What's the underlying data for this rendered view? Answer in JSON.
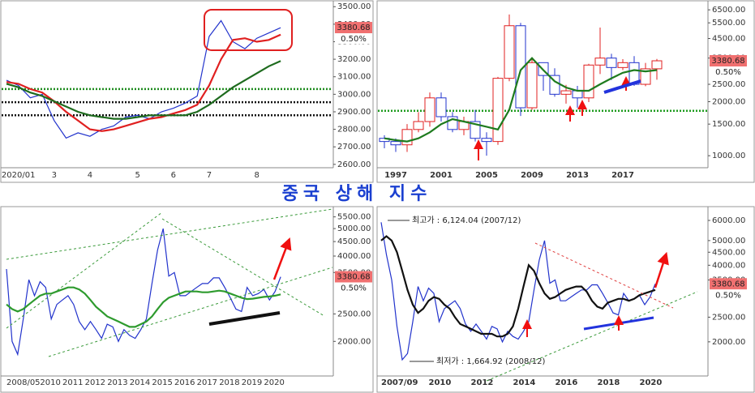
{
  "page_title": "중국 상해 지수",
  "chart_data": [
    {
      "type": "line",
      "log_scale": false,
      "ylim": [
        2590,
        3515
      ],
      "yticks": [
        {
          "value": 2600,
          "label": "2600.00"
        },
        {
          "value": 2700,
          "label": "2700.00"
        },
        {
          "value": 2800,
          "label": "2800.00"
        },
        {
          "value": 2900,
          "label": "2900.00"
        },
        {
          "value": 3000,
          "label": "3000.00"
        },
        {
          "value": 3100,
          "label": "3100.00"
        },
        {
          "value": 3200,
          "label": "3200.00"
        },
        {
          "value": 3300,
          "label": "3300.00"
        },
        {
          "value": 3400,
          "label": "3400.00"
        },
        {
          "value": 3500,
          "label": "3500.00"
        }
      ],
      "categories": [
        null,
        "2020/01",
        null,
        null,
        "3",
        null,
        null,
        "4",
        null,
        null,
        null,
        "5",
        null,
        null,
        "6",
        null,
        null,
        "7",
        null,
        null,
        null,
        "8",
        null,
        null
      ],
      "series": [
        {
          "color": "#2233cc",
          "values": [
            3080,
            3050,
            2980,
            3000,
            2850,
            2750,
            2780,
            2760,
            2800,
            2820,
            2870,
            2880,
            2860,
            2900,
            2920,
            2950,
            2990,
            3330,
            3420,
            3300,
            3260,
            3320,
            3350,
            3380
          ]
        },
        {
          "color": "#e02020",
          "values": [
            3070,
            3060,
            3030,
            3010,
            2960,
            2900,
            2850,
            2800,
            2790,
            2800,
            2820,
            2840,
            2860,
            2870,
            2890,
            2910,
            2940,
            3050,
            3200,
            3310,
            3320,
            3300,
            3310,
            3340
          ]
        },
        {
          "color": "#1e6b1e",
          "values": [
            3060,
            3040,
            3010,
            2990,
            2960,
            2930,
            2900,
            2880,
            2870,
            2860,
            2860,
            2870,
            2880,
            2880,
            2880,
            2880,
            2900,
            2940,
            2990,
            3040,
            3080,
            3120,
            3160,
            3190
          ]
        }
      ],
      "reference_lines": [
        {
          "value": 3030,
          "color": "#1e8b1e"
        },
        {
          "value": 2955,
          "color": "#111111"
        },
        {
          "value": 2880,
          "color": "#111111"
        }
      ],
      "price_tag": {
        "value": 3380.68,
        "label": "3380.68",
        "change": "0.50%"
      }
    },
    {
      "type": "candlestick",
      "log_scale": true,
      "ylim": [
        875,
        7000
      ],
      "yticks": [
        {
          "value": 1000,
          "label": "1000.00"
        },
        {
          "value": 1500,
          "label": "1500.00"
        },
        {
          "value": 2000,
          "label": "2000.00"
        },
        {
          "value": 2500,
          "label": "2500.00"
        },
        {
          "value": 3500,
          "label": "3500.00"
        },
        {
          "value": 4500,
          "label": "4500.00"
        },
        {
          "value": 5500,
          "label": "5500.00"
        },
        {
          "value": 6500,
          "label": "6500.00"
        }
      ],
      "categories": [
        null,
        "1997",
        null,
        null,
        null,
        "2001",
        null,
        null,
        null,
        "2005",
        null,
        null,
        null,
        "2009",
        null,
        null,
        null,
        "2013",
        null,
        null,
        null,
        "2017",
        null,
        null,
        null
      ],
      "open": [
        1250,
        1200,
        1150,
        1400,
        1550,
        2100,
        1650,
        1400,
        1550,
        1250,
        1200,
        2700,
        5300,
        1850,
        3300,
        2800,
        2200,
        2300,
        2100,
        3200,
        3500,
        3100,
        3300,
        2500,
        3050
      ],
      "close": [
        1200,
        1150,
        1400,
        1550,
        2100,
        1650,
        1400,
        1550,
        1250,
        1200,
        2700,
        5300,
        1850,
        3300,
        2800,
        2200,
        2300,
        2100,
        3200,
        3500,
        3100,
        3300,
        2500,
        3050,
        3380
      ],
      "high": [
        1300,
        1250,
        1500,
        1750,
        2250,
        2250,
        1750,
        1650,
        1800,
        1350,
        2750,
        6124,
        5500,
        3480,
        3300,
        3070,
        2480,
        2450,
        3250,
        5180,
        3700,
        3450,
        3590,
        3290,
        3460
      ],
      "low": [
        1100,
        1050,
        1050,
        1350,
        1450,
        1550,
        1350,
        1300,
        1200,
        1000,
        1150,
        2600,
        1664,
        1800,
        2300,
        2130,
        1950,
        1850,
        1990,
        2850,
        2640,
        3000,
        2450,
        2440,
        2650
      ],
      "up_color": "#e02020",
      "down_color": "#2233cc",
      "series": [
        {
          "color": "#1e7b1e",
          "values": [
            1250,
            1220,
            1200,
            1250,
            1350,
            1500,
            1600,
            1550,
            1500,
            1450,
            1400,
            1800,
            3000,
            3500,
            3000,
            2600,
            2400,
            2300,
            2300,
            2500,
            2700,
            2900,
            3000,
            2950,
            3000
          ]
        }
      ],
      "reference_lines": [
        {
          "value": 1780,
          "color": "#1e9b1e"
        }
      ],
      "price_tag": {
        "value": 3380.68,
        "label": "3380.68",
        "change": "0.50%"
      }
    },
    {
      "type": "line",
      "log_scale": true,
      "ylim": [
        1530,
        5860
      ],
      "yticks": [
        {
          "value": 2000,
          "label": "2000.00"
        },
        {
          "value": 2500,
          "label": "2500.00"
        },
        {
          "value": 3500,
          "label": "3500.00"
        },
        {
          "value": 4000,
          "label": "4000.00"
        },
        {
          "value": 4500,
          "label": "4500.00"
        },
        {
          "value": 5000,
          "label": "5000.00"
        },
        {
          "value": 5500,
          "label": "5500.00"
        }
      ],
      "categories": [
        "2008/05",
        null,
        null,
        null,
        null,
        null,
        "2010",
        null,
        null,
        null,
        "2011",
        null,
        null,
        null,
        "2012",
        null,
        null,
        null,
        "2013",
        null,
        null,
        null,
        "2014",
        null,
        null,
        null,
        "2015",
        null,
        null,
        null,
        "2016",
        null,
        null,
        null,
        "2017",
        null,
        null,
        null,
        "2018",
        null,
        null,
        null,
        "2019",
        null,
        null,
        null,
        "2020",
        null,
        null,
        null
      ],
      "series": [
        {
          "color": "#2233cc",
          "values": [
            3600,
            2000,
            1800,
            2400,
            3300,
            2900,
            3250,
            3100,
            2400,
            2700,
            2800,
            2900,
            2700,
            2350,
            2200,
            2350,
            2200,
            2050,
            2300,
            2250,
            2000,
            2200,
            2100,
            2050,
            2200,
            2400,
            3200,
            4200,
            5000,
            3400,
            3500,
            2900,
            2900,
            3000,
            3100,
            3200,
            3200,
            3350,
            3350,
            3100,
            2850,
            2600,
            2550,
            3100,
            2900,
            2950,
            3050,
            2800,
            3000,
            3380
          ]
        },
        {
          "color": "#2e9b2e",
          "values": [
            2700,
            2600,
            2550,
            2600,
            2700,
            2800,
            2900,
            2950,
            2950,
            3000,
            3050,
            3100,
            3100,
            3050,
            2950,
            2800,
            2650,
            2550,
            2450,
            2400,
            2350,
            2300,
            2250,
            2250,
            2300,
            2350,
            2450,
            2600,
            2750,
            2850,
            2900,
            2950,
            3000,
            3000,
            3000,
            2980,
            2980,
            3000,
            3020,
            3000,
            2950,
            2900,
            2850,
            2820,
            2830,
            2850,
            2870,
            2880,
            2900,
            2930
          ]
        }
      ],
      "price_tag": {
        "value": 3380.68,
        "label": "3380.68",
        "change": "0.50%"
      }
    },
    {
      "type": "line",
      "log_scale": true,
      "ylim": [
        1490,
        6650
      ],
      "yticks": [
        {
          "value": 2000,
          "label": "2000.00"
        },
        {
          "value": 2500,
          "label": "2500.00"
        },
        {
          "value": 3500,
          "label": "3500.00"
        },
        {
          "value": 4000,
          "label": "4000.00"
        },
        {
          "value": 4500,
          "label": "4500.00"
        },
        {
          "value": 5000,
          "label": "5000.00"
        },
        {
          "value": 6000,
          "label": "6000.00"
        }
      ],
      "categories": [
        "2007/09",
        null,
        null,
        null,
        null,
        null,
        null,
        null,
        null,
        "2010",
        null,
        null,
        null,
        null,
        null,
        null,
        null,
        "2012",
        null,
        null,
        null,
        null,
        null,
        null,
        null,
        "2014",
        null,
        null,
        null,
        null,
        null,
        null,
        null,
        "2016",
        null,
        null,
        null,
        null,
        null,
        null,
        null,
        "2018",
        null,
        null,
        null,
        null,
        null,
        null,
        null,
        "2020",
        null,
        null,
        null
      ],
      "series": [
        {
          "color": "#2233cc",
          "values": [
            5900,
            4400,
            3500,
            2300,
            1700,
            1800,
            2400,
            3300,
            2900,
            3250,
            3100,
            2400,
            2700,
            2800,
            2900,
            2700,
            2350,
            2200,
            2350,
            2200,
            2050,
            2300,
            2250,
            2000,
            2200,
            2100,
            2050,
            2200,
            2400,
            3200,
            4200,
            5000,
            3400,
            3500,
            2900,
            2900,
            3000,
            3100,
            3200,
            3200,
            3350,
            3350,
            3100,
            2850,
            2600,
            2550,
            3100,
            2900,
            2950,
            3050,
            2800,
            3000,
            3380
          ]
        },
        {
          "color": "#111111",
          "values": [
            5000,
            5200,
            5000,
            4500,
            3800,
            3200,
            2800,
            2600,
            2700,
            2900,
            3000,
            2950,
            2800,
            2700,
            2500,
            2350,
            2300,
            2250,
            2200,
            2150,
            2150,
            2150,
            2100,
            2100,
            2150,
            2300,
            2700,
            3300,
            4000,
            3800,
            3400,
            3100,
            2950,
            3000,
            3100,
            3200,
            3250,
            3300,
            3300,
            3150,
            2900,
            2750,
            2700,
            2850,
            2900,
            2950,
            2950,
            2900,
            2950,
            3050,
            3100,
            3150,
            3200
          ]
        }
      ],
      "annotations": [
        {
          "text": "최고가 : 6,124.04 (2007/12)",
          "color": "#d02020"
        },
        {
          "text": "최저가 : 1,664.92 (2008/12)",
          "color": "#2233cc"
        }
      ],
      "price_tag": {
        "value": 3380.68,
        "label": "3380.68",
        "change": "0.50%"
      }
    }
  ]
}
